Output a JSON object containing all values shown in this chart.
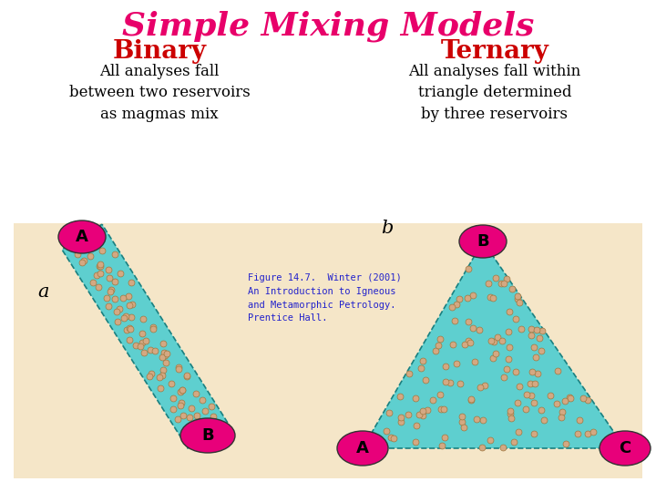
{
  "title": "Simple Mixing Models",
  "title_color": "#E8006A",
  "title_fontsize": 26,
  "subtitle_binary": "Binary",
  "subtitle_ternary": "Ternary",
  "subtitle_color": "#CC0000",
  "subtitle_fontsize": 20,
  "desc_binary": "All analyses fall\nbetween two reservoirs\nas magmas mix",
  "desc_ternary": "All analyses fall within\ntriangle determined\nby three reservoirs",
  "desc_color": "#000000",
  "desc_fontsize": 12,
  "bg_color": "#F5E6C8",
  "fill_color": "#5ECFCF",
  "dot_color": "#D4A882",
  "dot_edge_color": "#A07840",
  "reservoir_color": "#E8007A",
  "reservoir_text_color": "#000000",
  "label_fontsize": 13,
  "caption_color": "#2222CC",
  "caption_fontsize": 7.5,
  "caption_text": "Figure 14.7.  Winter (2001)\nAn Introduction to Igneous\nand Metamorphic Petrology.\nPrentice Hall.",
  "ab_label_fontsize": 15
}
